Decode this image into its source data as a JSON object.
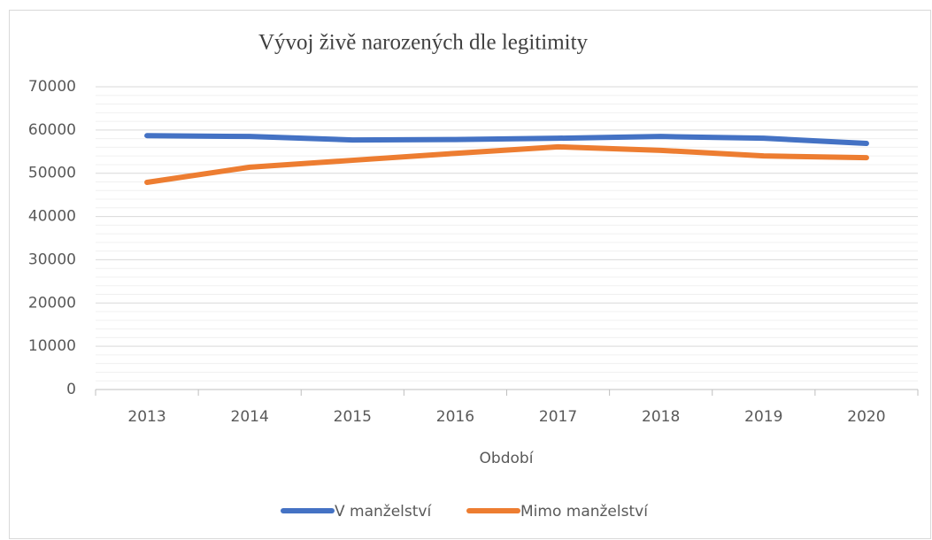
{
  "chart_data": {
    "type": "line",
    "title": "Vývoj živě narozených dle legitimity",
    "x_label": "Období",
    "categories": [
      "2013",
      "2014",
      "2015",
      "2016",
      "2017",
      "2018",
      "2019",
      "2020"
    ],
    "series": [
      {
        "name": "V manželství",
        "color": "#4472c4",
        "values": [
          58700,
          58500,
          57700,
          57800,
          58100,
          58500,
          58100,
          56900
        ]
      },
      {
        "name": "Mimo manželství",
        "color": "#ed7d31",
        "values": [
          47900,
          51400,
          53000,
          54600,
          56100,
          55300,
          54000,
          53600
        ]
      }
    ],
    "ylim": [
      0,
      70000
    ],
    "yticks": [
      0,
      10000,
      20000,
      30000,
      40000,
      50000,
      60000,
      70000
    ],
    "grid": true,
    "minor_grid": true,
    "legend": "bottom"
  }
}
